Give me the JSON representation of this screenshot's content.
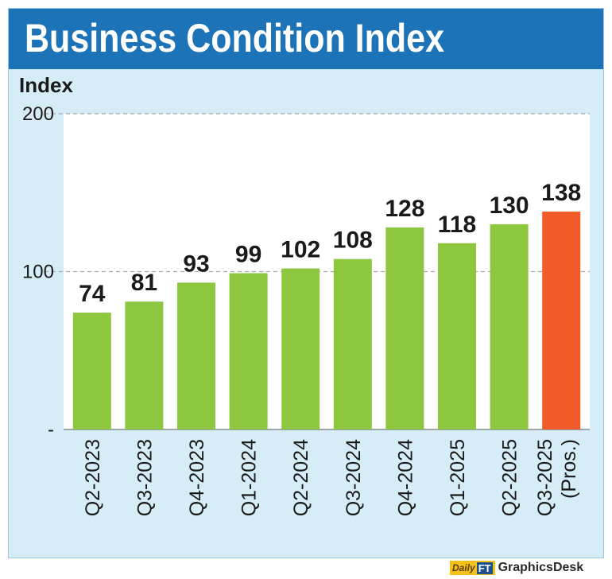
{
  "header": {
    "title": "Business Condition Index"
  },
  "chart_data": {
    "type": "bar",
    "title": "Business Condition Index",
    "ylabel": "Index",
    "xlabel": "",
    "ylim": [
      0,
      200
    ],
    "yticks": [
      {
        "value": 200,
        "label": "200"
      },
      {
        "value": 100,
        "label": "100"
      },
      {
        "value": 0,
        "label": "-"
      }
    ],
    "grid": true,
    "categories": [
      "Q2-2023",
      "Q3-2023",
      "Q4-2023",
      "Q1-2024",
      "Q2-2024",
      "Q3-2024",
      "Q4-2024",
      "Q1-2025",
      "Q2-2025",
      "Q3-2025"
    ],
    "category_sublabels": [
      "",
      "",
      "",
      "",
      "",
      "",
      "",
      "",
      "",
      "(Pros.)"
    ],
    "values": [
      74,
      81,
      93,
      99,
      102,
      108,
      128,
      118,
      130,
      138
    ],
    "value_labels": [
      "74",
      "81",
      "93",
      "99",
      "102",
      "108",
      "128",
      "118",
      "130",
      "138"
    ],
    "bar_colors": [
      "#8dc63f",
      "#8dc63f",
      "#8dc63f",
      "#8dc63f",
      "#8dc63f",
      "#8dc63f",
      "#8dc63f",
      "#8dc63f",
      "#8dc63f",
      "#f15a29"
    ]
  },
  "footer": {
    "logo_text": "Daily",
    "logo_badge": "FT",
    "credit": "GraphicsDesk"
  }
}
